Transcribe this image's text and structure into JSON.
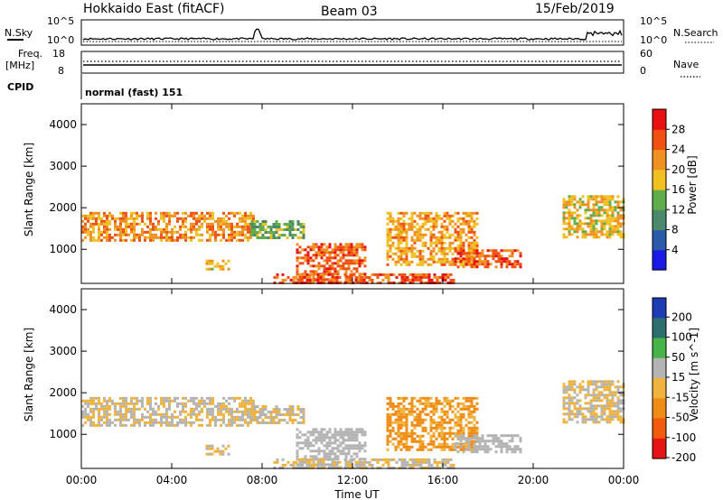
{
  "header": {
    "radar": "Hokkaido East (fitACF)",
    "beam": "Beam 03",
    "date": "15/Feb/2019"
  },
  "side_labels": {
    "nsky": "N.Sky",
    "freq_line1": "Freq.",
    "freq_line2": "[MHz]",
    "cpid": "CPID",
    "nsearch": "N.Search",
    "nave": "Nave"
  },
  "strip_ticks": {
    "noise_left": [
      "10^5",
      "10^0"
    ],
    "noise_right": [
      "10^5",
      "10^0"
    ],
    "freq_left": [
      "18",
      "8"
    ],
    "freq_right": [
      "60",
      "0"
    ]
  },
  "cpid_text": "normal (fast) 151",
  "colors": {
    "power": [
      "#1a1ae6",
      "#2a5aa8",
      "#4a8a6a",
      "#5fae4a",
      "#f0c020",
      "#f09020",
      "#f05010",
      "#e81010"
    ],
    "velocity": [
      "#1e3cb4",
      "#2d6e6e",
      "#46b446",
      "#b4b4b4",
      "#f0b43c",
      "#f08c14",
      "#f05a0a",
      "#e61414"
    ]
  },
  "chart_data": [
    {
      "type": "heatmap",
      "name": "power",
      "xlabel": "",
      "ylabel": "Slant Range [km]",
      "x_ticks": [
        "00:00",
        "04:00",
        "08:00",
        "12:00",
        "16:00",
        "20:00",
        "00:00"
      ],
      "xlim_hours": [
        0,
        24
      ],
      "ylim_km": [
        180,
        4500
      ],
      "y_ticks": [
        1000,
        2000,
        3000,
        4000
      ],
      "colorbar": {
        "label": "Power [dB]",
        "range": [
          0,
          32
        ],
        "ticks": [
          4,
          8,
          12,
          16,
          20,
          24,
          28
        ]
      },
      "regions": [
        {
          "t0": 0.0,
          "t1": 7.6,
          "r0": 1200,
          "r1": 1900,
          "value": 22
        },
        {
          "t0": 7.5,
          "t1": 9.8,
          "r0": 1300,
          "r1": 1700,
          "value": 13
        },
        {
          "t0": 9.5,
          "t1": 12.6,
          "r0": 180,
          "r1": 1150,
          "value": 25
        },
        {
          "t0": 8.5,
          "t1": 16.5,
          "r0": 180,
          "r1": 420,
          "value": 26
        },
        {
          "t0": 13.5,
          "t1": 17.5,
          "r0": 600,
          "r1": 1900,
          "value": 21
        },
        {
          "t0": 16.5,
          "t1": 19.5,
          "r0": 600,
          "r1": 1000,
          "value": 26
        },
        {
          "t0": 5.5,
          "t1": 6.5,
          "r0": 500,
          "r1": 750,
          "value": 20
        },
        {
          "t0": 21.3,
          "t1": 24.0,
          "r0": 1300,
          "r1": 2300,
          "value": 19
        }
      ]
    },
    {
      "type": "heatmap",
      "name": "velocity",
      "xlabel": "Time UT",
      "ylabel": "Slant Range [km]",
      "x_ticks": [
        "00:00",
        "04:00",
        "08:00",
        "12:00",
        "16:00",
        "20:00",
        "00:00"
      ],
      "xlim_hours": [
        0,
        24
      ],
      "ylim_km": [
        180,
        4500
      ],
      "y_ticks": [
        1000,
        2000,
        3000,
        4000
      ],
      "colorbar": {
        "label": "Velocity [m s^-1]",
        "range": [
          -250,
          250
        ],
        "ticks": [
          200,
          100,
          50,
          15,
          -15,
          -50,
          -100,
          -200
        ]
      },
      "regions": [
        {
          "t0": 0.0,
          "t1": 7.6,
          "r0": 1200,
          "r1": 1900,
          "value": 0
        },
        {
          "t0": 7.5,
          "t1": 9.8,
          "r0": 1300,
          "r1": 1700,
          "value": 0
        },
        {
          "t0": 9.5,
          "t1": 12.6,
          "r0": 180,
          "r1": 1150,
          "value": 30
        },
        {
          "t0": 8.5,
          "t1": 16.5,
          "r0": 180,
          "r1": 420,
          "value": 0
        },
        {
          "t0": 13.5,
          "t1": 17.5,
          "r0": 600,
          "r1": 1900,
          "value": -70
        },
        {
          "t0": 16.5,
          "t1": 19.5,
          "r0": 600,
          "r1": 1000,
          "value": 30
        },
        {
          "t0": 5.5,
          "t1": 6.5,
          "r0": 500,
          "r1": 750,
          "value": 0
        },
        {
          "t0": 21.3,
          "t1": 24.0,
          "r0": 1300,
          "r1": 2300,
          "value": 0
        }
      ]
    }
  ]
}
